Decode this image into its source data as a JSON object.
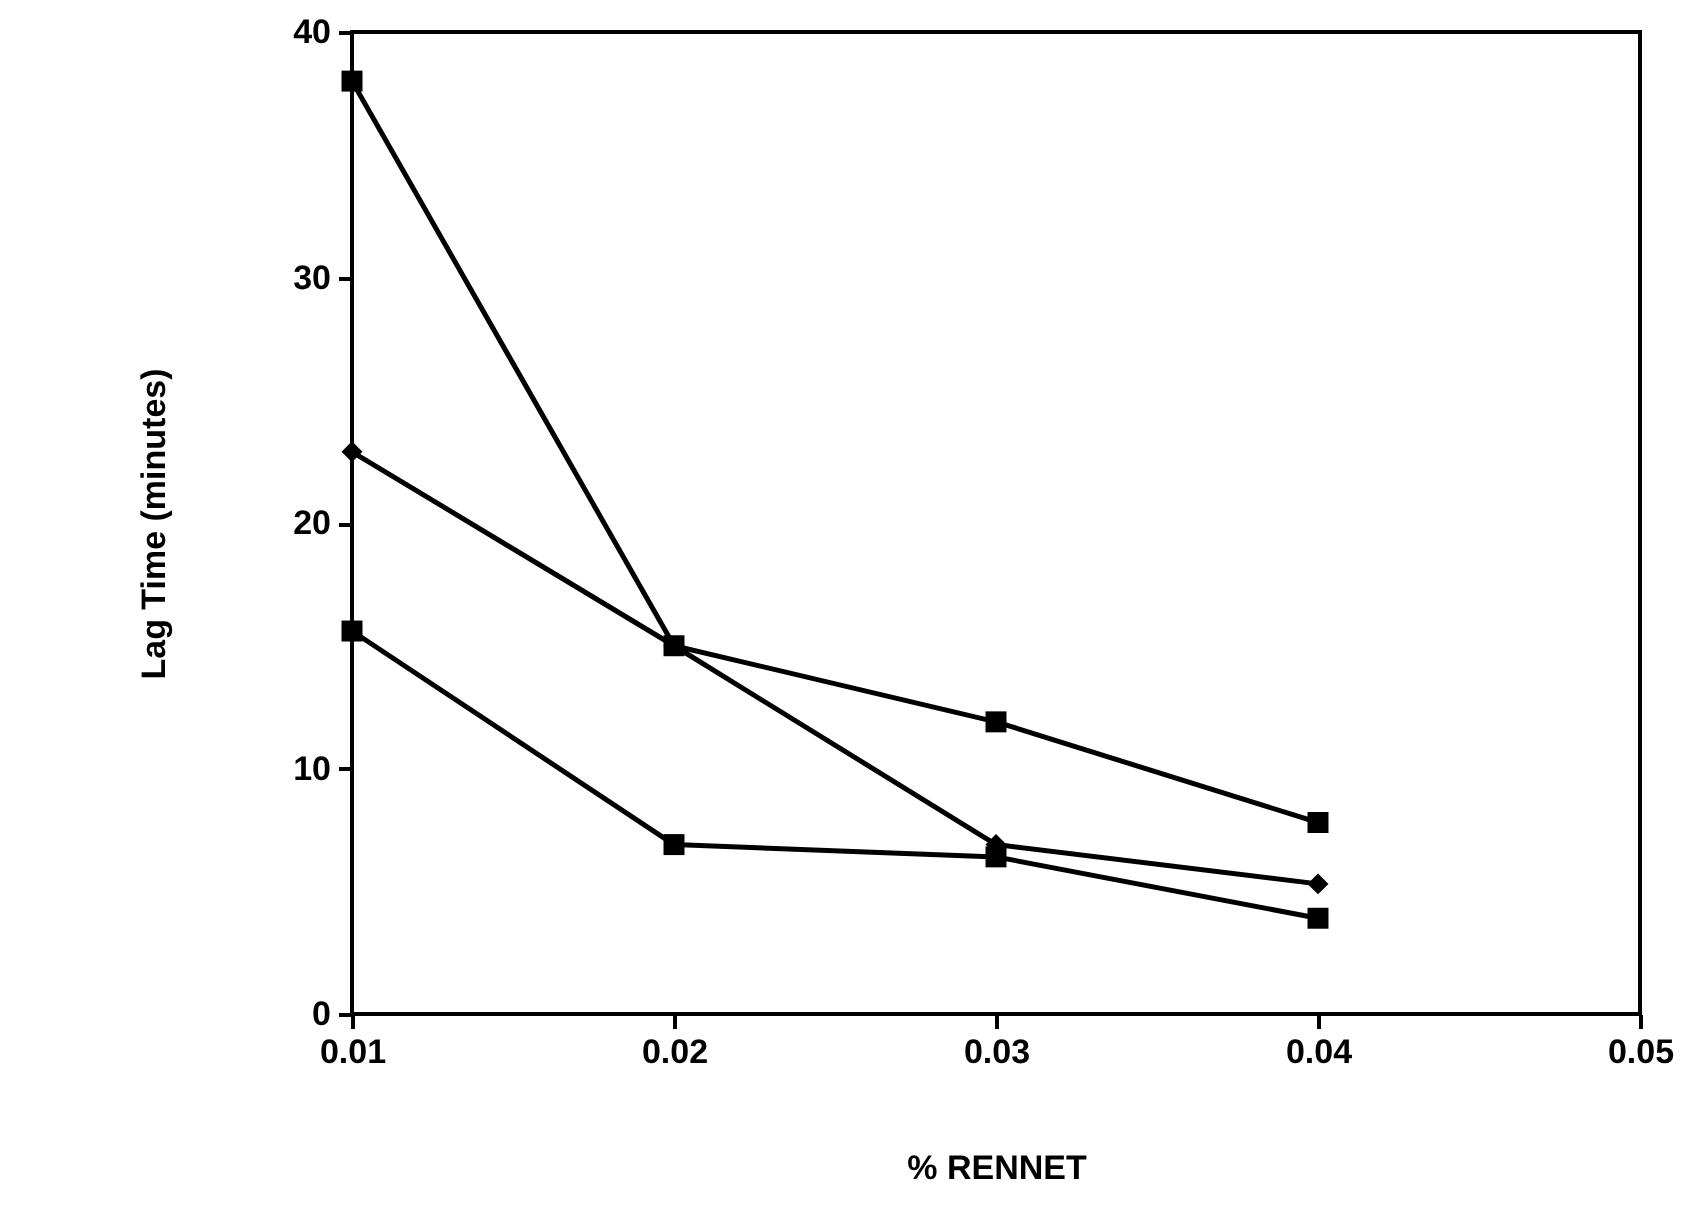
{
  "chart_data": {
    "type": "line",
    "xlabel": "% RENNET",
    "ylabel": "Lag Time (minutes)",
    "x": [
      0.01,
      0.02,
      0.03,
      0.04
    ],
    "xlim": [
      0.01,
      0.05
    ],
    "xticks": [
      0.01,
      0.02,
      0.03,
      0.04,
      0.05
    ],
    "ylim": [
      0,
      40
    ],
    "yticks": [
      0,
      10,
      20,
      30,
      40
    ],
    "grid": false,
    "series": [
      {
        "color": "#000000",
        "marker": "square",
        "values": [
          38,
          15,
          11.9,
          7.8
        ]
      },
      {
        "color": "#000000",
        "marker": "diamond",
        "values": [
          22.9,
          15,
          6.9,
          5.3
        ]
      },
      {
        "color": "#000000",
        "marker": "square",
        "values": [
          15.6,
          6.9,
          6.4,
          3.9
        ]
      }
    ]
  }
}
